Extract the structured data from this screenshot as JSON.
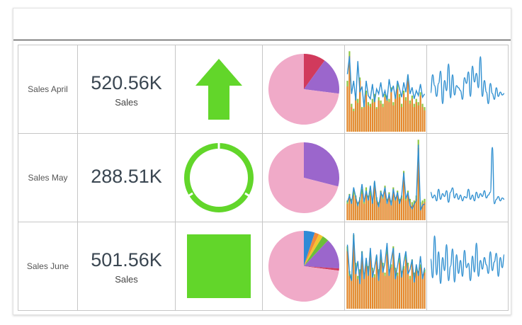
{
  "colors": {
    "indicator_green": "#62d62a",
    "pie_pink": "#f0aac8",
    "pie_purple": "#9b66cc",
    "pie_red": "#d13a5c",
    "pie_blue": "#2f8ad6",
    "pie_orange": "#f08a3c",
    "pie_yellow": "#f4c430",
    "pie_green": "#6cbf3a",
    "bar_orange": "#e8862d",
    "bar_lime": "#8ec63f",
    "line_blue": "#2f8fd0"
  },
  "rows": [
    {
      "label": "Sales April",
      "kpi_value": "520.56K",
      "kpi_subtitle": "Sales",
      "indicator": "up-arrow"
    },
    {
      "label": "Sales May",
      "kpi_value": "288.51K",
      "kpi_subtitle": "",
      "indicator": "ring"
    },
    {
      "label": "Sales June",
      "kpi_value": "501.56K",
      "kpi_subtitle": "Sales",
      "indicator": "square"
    }
  ],
  "chart_data": [
    {
      "type": "pie",
      "row": "Sales April",
      "slices": [
        {
          "value": 10,
          "color": "#d13a5c"
        },
        {
          "value": 17,
          "color": "#9b66cc"
        },
        {
          "value": 73,
          "color": "#f0aac8"
        }
      ]
    },
    {
      "type": "pie",
      "row": "Sales May",
      "slices": [
        {
          "value": 29,
          "color": "#9b66cc"
        },
        {
          "value": 71,
          "color": "#f0aac8"
        }
      ]
    },
    {
      "type": "pie",
      "row": "Sales June",
      "slices": [
        {
          "value": 5,
          "color": "#2f8ad6"
        },
        {
          "value": 2,
          "color": "#f08a3c"
        },
        {
          "value": 2,
          "color": "#f4c430"
        },
        {
          "value": 3,
          "color": "#6cbf3a"
        },
        {
          "value": 14,
          "color": "#9b66cc"
        },
        {
          "value": 1,
          "color": "#d13a5c"
        },
        {
          "value": 73,
          "color": "#f0aac8"
        }
      ]
    },
    {
      "type": "bar",
      "row": "Sales April",
      "ylim": [
        0,
        100
      ],
      "values": [
        55,
        92,
        30,
        25,
        40,
        35,
        62,
        28,
        30,
        45,
        32,
        30,
        35,
        40,
        28,
        38,
        34,
        30,
        42,
        38,
        36,
        48,
        32,
        40,
        52,
        42,
        30,
        46,
        38,
        62,
        34,
        40,
        30,
        36,
        32,
        44,
        30,
        26
      ],
      "values2": [
        62,
        98,
        34,
        28,
        46,
        40,
        66,
        30,
        34,
        50,
        36,
        34,
        40,
        46,
        30,
        42,
        38,
        34,
        46,
        44,
        40,
        54,
        36,
        44,
        58,
        46,
        34,
        50,
        42,
        68,
        38,
        44,
        34,
        40,
        36,
        48,
        34,
        30
      ],
      "line": [
        70,
        92,
        46,
        62,
        38,
        86,
        48,
        55,
        30,
        62,
        44,
        40,
        58,
        36,
        52,
        46,
        60,
        42,
        50,
        38,
        64,
        48,
        56,
        40,
        62,
        52,
        42,
        60,
        48,
        70,
        46,
        54,
        40,
        50,
        44,
        58,
        42,
        46
      ]
    },
    {
      "type": "bar",
      "row": "Sales May",
      "ylim": [
        0,
        100
      ],
      "values": [
        20,
        28,
        22,
        30,
        26,
        18,
        24,
        32,
        20,
        34,
        26,
        30,
        22,
        40,
        24,
        18,
        30,
        26,
        36,
        22,
        28,
        20,
        34,
        24,
        30,
        22,
        26,
        52,
        24,
        30,
        22,
        18,
        20,
        26,
        88,
        18,
        20,
        22
      ],
      "values2": [
        24,
        32,
        26,
        36,
        30,
        22,
        28,
        38,
        24,
        40,
        30,
        36,
        26,
        46,
        28,
        22,
        36,
        30,
        42,
        26,
        34,
        24,
        40,
        28,
        36,
        26,
        30,
        60,
        28,
        36,
        26,
        22,
        24,
        30,
        98,
        22,
        24,
        26
      ],
      "line": [
        22,
        30,
        20,
        40,
        28,
        18,
        26,
        44,
        22,
        36,
        24,
        42,
        20,
        48,
        26,
        16,
        34,
        28,
        40,
        20,
        32,
        18,
        38,
        24,
        34,
        20,
        30,
        58,
        26,
        34,
        18,
        14,
        20,
        24,
        92,
        12,
        18,
        20
      ]
    },
    {
      "type": "bar",
      "row": "Sales June",
      "ylim": [
        0,
        100
      ],
      "values": [
        70,
        40,
        38,
        82,
        50,
        36,
        44,
        64,
        40,
        52,
        48,
        62,
        46,
        38,
        58,
        44,
        60,
        52,
        40,
        66,
        44,
        50,
        70,
        46,
        40,
        56,
        42,
        48,
        60,
        52,
        36,
        54,
        40,
        46,
        42,
        50,
        38,
        44
      ],
      "values2": [
        76,
        46,
        42,
        90,
        56,
        40,
        48,
        70,
        44,
        58,
        52,
        68,
        50,
        42,
        64,
        48,
        66,
        56,
        44,
        72,
        48,
        54,
        76,
        50,
        44,
        62,
        46,
        52,
        66,
        56,
        40,
        60,
        44,
        50,
        46,
        54,
        42,
        48
      ],
      "line": [
        78,
        44,
        34,
        92,
        42,
        58,
        30,
        70,
        36,
        62,
        40,
        74,
        38,
        50,
        66,
        34,
        72,
        44,
        56,
        80,
        40,
        60,
        74,
        36,
        52,
        68,
        38,
        56,
        70,
        42,
        48,
        60,
        32,
        54,
        40,
        64,
        36,
        50
      ]
    },
    {
      "type": "line",
      "row": "Sales April",
      "ylim": [
        0,
        100
      ],
      "values": [
        45,
        70,
        55,
        40,
        58,
        75,
        30,
        62,
        48,
        85,
        38,
        70,
        42,
        55,
        52,
        48,
        36,
        66,
        58,
        74,
        40,
        82,
        60,
        72,
        52,
        95,
        40,
        62,
        46,
        30,
        58,
        44,
        36,
        52,
        40,
        46,
        42,
        44
      ]
    },
    {
      "type": "line",
      "row": "Sales May",
      "ylim": [
        0,
        100
      ],
      "values": [
        30,
        22,
        26,
        18,
        34,
        20,
        28,
        24,
        32,
        16,
        30,
        36,
        22,
        28,
        20,
        26,
        18,
        24,
        22,
        34,
        20,
        26,
        18,
        30,
        22,
        28,
        24,
        32,
        22,
        26,
        30,
        92,
        14,
        20,
        24,
        18,
        22,
        20
      ]
    },
    {
      "type": "line",
      "row": "Sales June",
      "ylim": [
        0,
        100
      ],
      "values": [
        60,
        34,
        92,
        38,
        70,
        26,
        62,
        44,
        80,
        30,
        50,
        74,
        28,
        66,
        40,
        58,
        36,
        72,
        48,
        54,
        30,
        64,
        42,
        82,
        36,
        58,
        46,
        62,
        52,
        40,
        70,
        44,
        56,
        68,
        36,
        62,
        48,
        66
      ]
    }
  ]
}
